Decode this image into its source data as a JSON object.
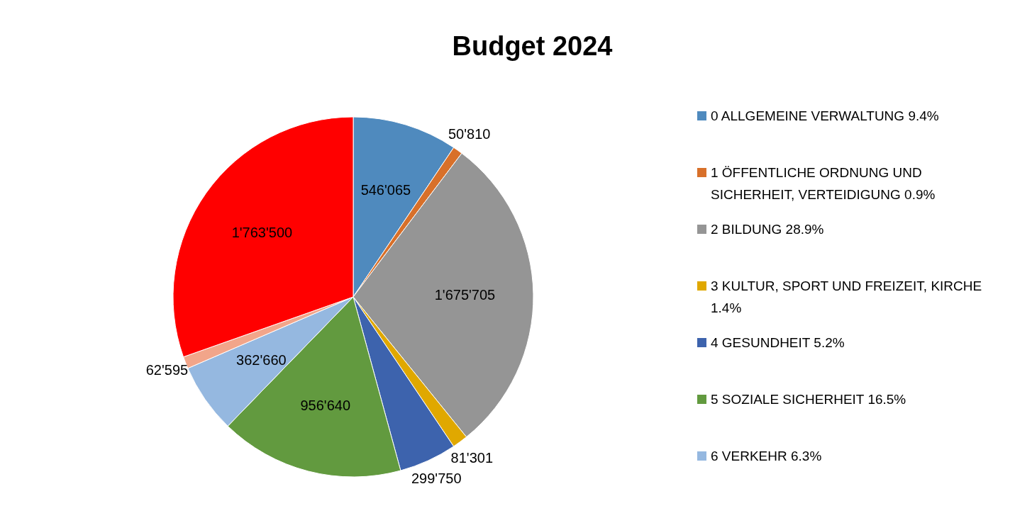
{
  "chart_data": {
    "type": "pie",
    "title": "Budget 2024",
    "categories": [
      "0 ALLGEMEINE VERWALTUNG 9.4%",
      "1 ÖFFENTLICHE ORDNUNG UND SICHERHEIT, VERTEIDIGUNG 0.9%",
      "2 BILDUNG 28.9%",
      "3 KULTUR, SPORT UND FREIZEIT, KIRCHE 1.4%",
      "4 GESUNDHEIT 5.2%",
      "5 SOZIALE SICHERHEIT 16.5%",
      "6 VERKEHR 6.3%",
      null,
      null
    ],
    "values": [
      546065,
      50810,
      1675705,
      81301,
      299750,
      956640,
      362660,
      62595,
      1763500
    ],
    "value_labels": [
      "546'065",
      "50'810",
      "1'675'705",
      "81'301",
      "299'750",
      "956'640",
      "362'660",
      "62'595",
      "1'763'500"
    ],
    "colors": [
      "#4f8abe",
      "#d8702a",
      "#959595",
      "#e0a800",
      "#3d63ad",
      "#629a3f",
      "#95b8e0",
      "#f2a58a",
      "#ff0000"
    ],
    "data_labels": true,
    "legend": "right"
  }
}
